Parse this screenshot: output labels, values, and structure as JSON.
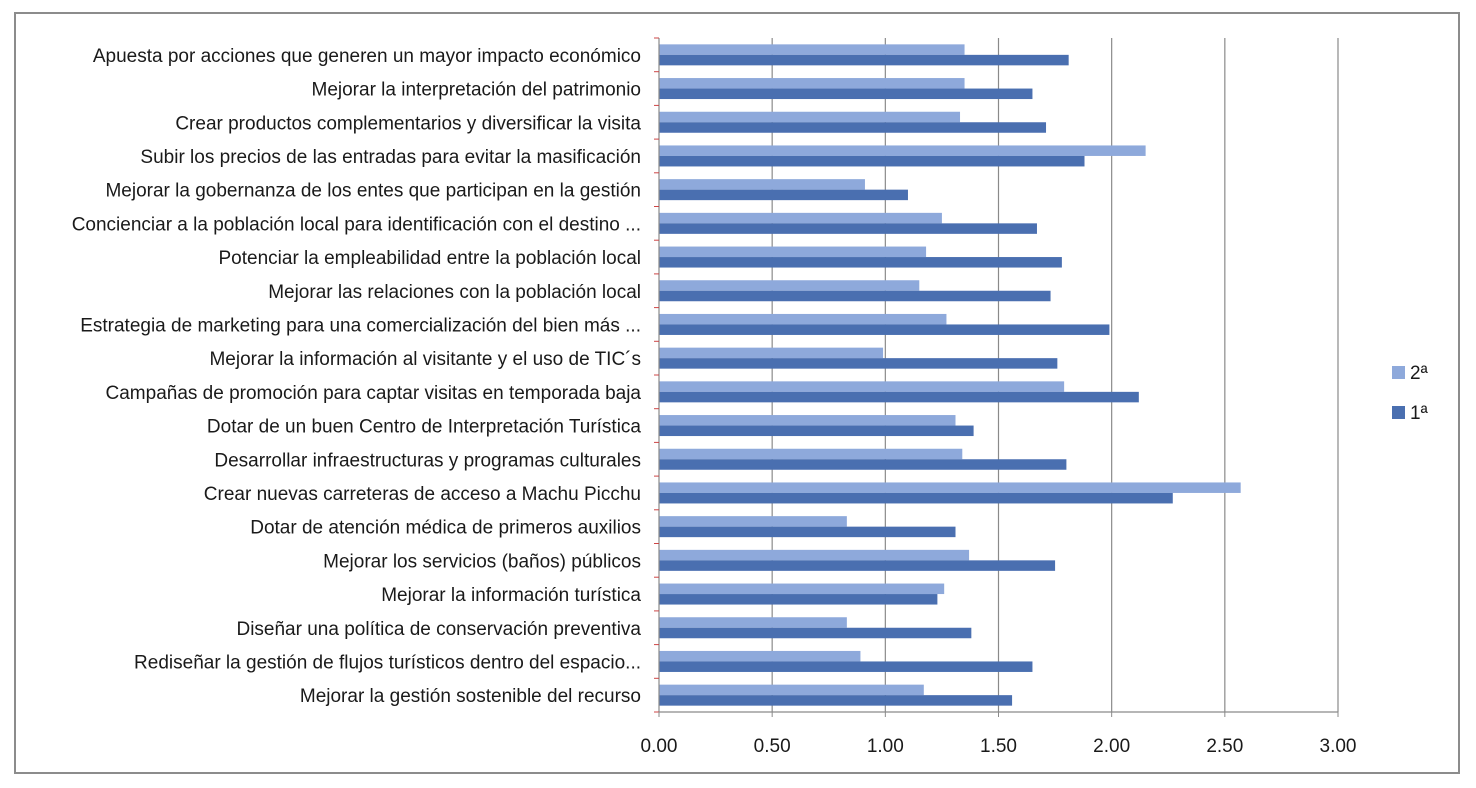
{
  "chart_data": {
    "type": "bar",
    "orientation": "horizontal",
    "categories": [
      "Apuesta por  acciones que generen un mayor impacto económico",
      "Mejorar la interpretación del patrimonio",
      "Crear productos complementarios  y diversificar la visita",
      "Subir los precios de las entradas para evitar la masificación",
      "Mejorar la gobernanza de los entes que participan en la gestión",
      "Concienciar a la población local para identificación con el destino ...",
      "Potenciar la empleabilidad  entre la población local",
      "Mejorar las  relaciones con la población local",
      "Estrategia de marketing para una comercialización del bien más ...",
      "Mejorar la información  al visitante  y el uso de TIC´s",
      "Campañas de promoción para captar  visitas en temporada baja",
      "Dotar de un buen Centro de Interpretación Turística",
      "Desarrollar infraestructuras y programas  culturales",
      "Crear nuevas carreteras de acceso a  Machu Picchu",
      "Dotar de atención médica de primeros auxilios",
      "Mejorar los servicios (baños)  públicos",
      "Mejorar la información turística",
      "Diseñar una política de conservación preventiva",
      "Rediseñar la gestión de flujos turísticos dentro del espacio...",
      "Mejorar la gestión  sostenible del recurso"
    ],
    "series": [
      {
        "name": "2ª",
        "color": "#8ea9db",
        "values": [
          1.35,
          1.35,
          1.33,
          2.15,
          0.91,
          1.25,
          1.18,
          1.15,
          1.27,
          0.99,
          1.79,
          1.31,
          1.34,
          2.57,
          0.83,
          1.37,
          1.26,
          0.83,
          0.89,
          1.17
        ]
      },
      {
        "name": "1ª",
        "color": "#4a6fb0",
        "values": [
          1.81,
          1.65,
          1.71,
          1.88,
          1.1,
          1.67,
          1.78,
          1.73,
          1.99,
          1.76,
          2.12,
          1.39,
          1.8,
          2.27,
          1.31,
          1.75,
          1.23,
          1.38,
          1.65,
          1.56
        ]
      }
    ],
    "xlim": [
      0,
      3
    ],
    "xticks": [
      "0.00",
      "0.50",
      "1.00",
      "1.50",
      "2.00",
      "2.50",
      "3.00"
    ],
    "xtick_values": [
      0,
      0.5,
      1,
      1.5,
      2,
      2.5,
      3
    ],
    "title": "",
    "xlabel": "",
    "ylabel": "",
    "grid": "vertical",
    "legend": "right"
  }
}
